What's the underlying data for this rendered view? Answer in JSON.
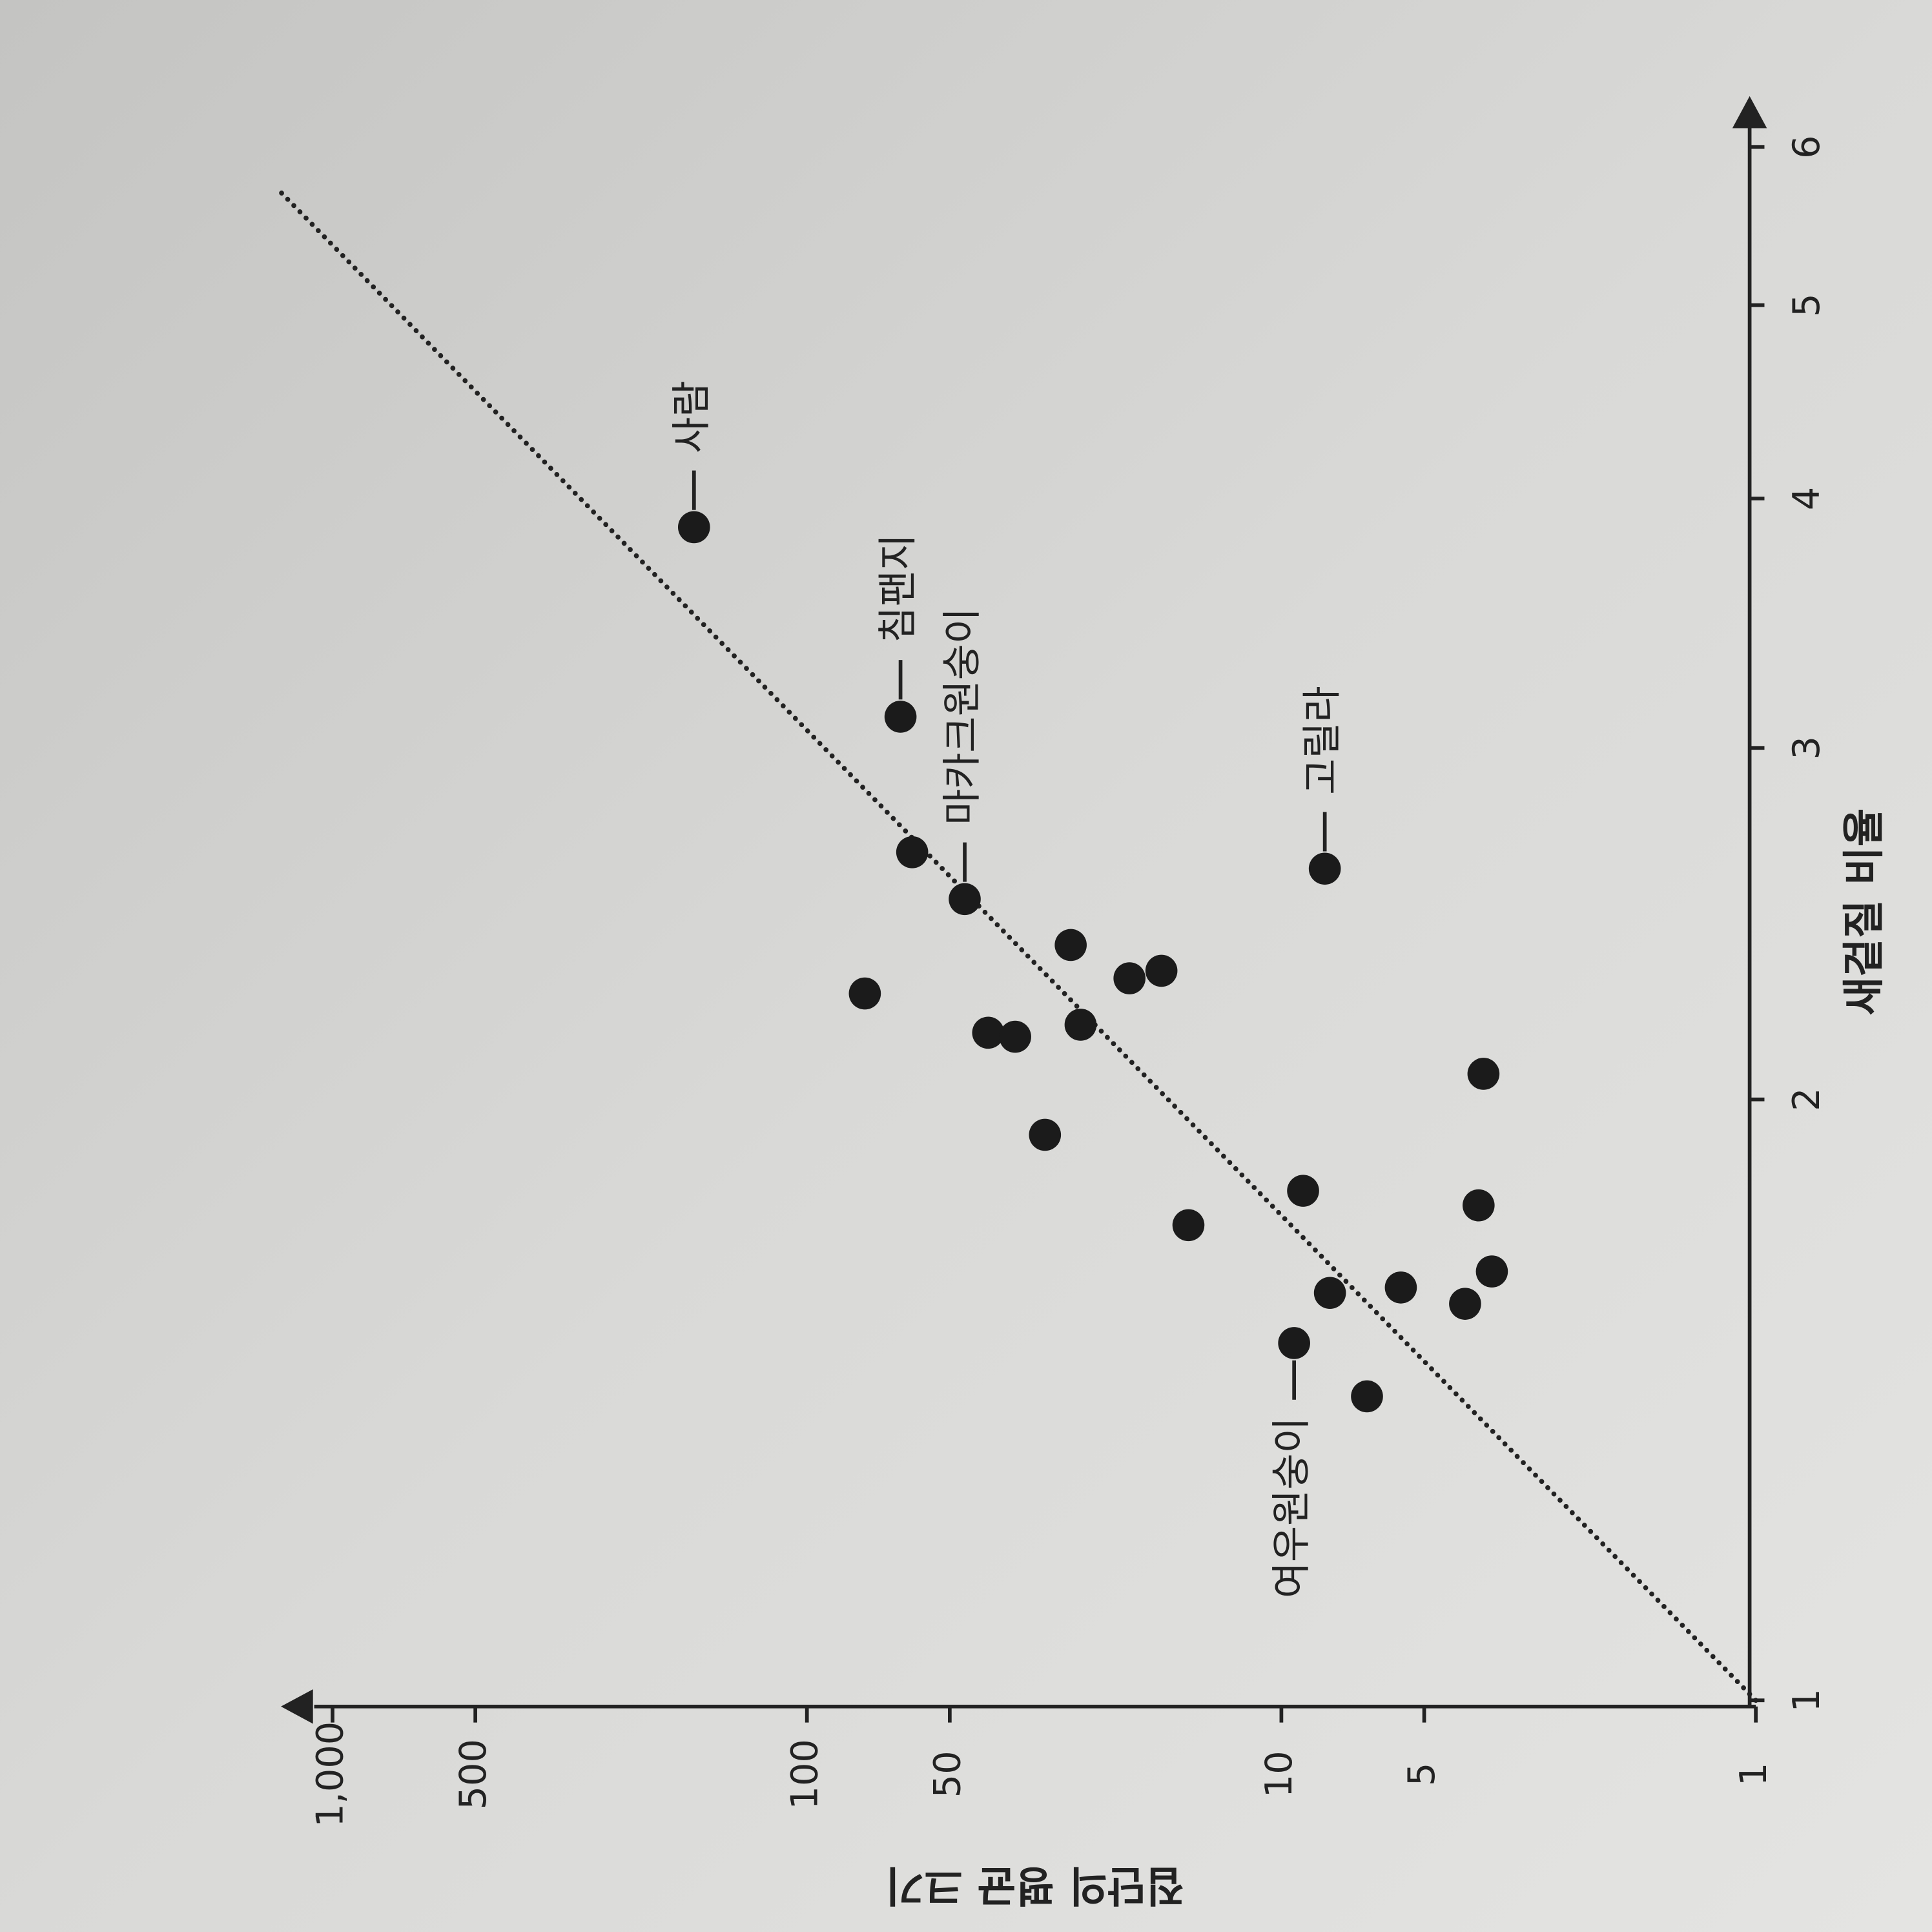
{
  "chart_data": {
    "type": "scatter",
    "x_label": "새겉질 비율",
    "y_label": "집단의 평균 크기",
    "xscale": "log",
    "yscale": "log",
    "xlim": [
      1,
      6.3
    ],
    "ylim": [
      1,
      1300
    ],
    "xticks": [
      1,
      2,
      3,
      4,
      5,
      6
    ],
    "yticks": [
      1,
      5,
      10,
      50,
      100,
      500,
      {
        "value": 1000,
        "label": "1,000"
      }
    ],
    "color": "#1b1b1b",
    "x": [
      3.87,
      3.11,
      2.52,
      2.66,
      2.61,
      2.26,
      2.39,
      2.3,
      2.32,
      2.16,
      2.15,
      2.18,
      1.92,
      2.06,
      1.8,
      1.73,
      1.77,
      1.64,
      1.6,
      1.61,
      1.58,
      1.51,
      1.42
    ],
    "y": [
      173,
      63.5,
      46.5,
      60,
      8.1,
      75.5,
      27.8,
      20.9,
      17.9,
      41.5,
      36.4,
      26.5,
      31.5,
      3.75,
      9.0,
      15.7,
      3.84,
      3.6,
      7.9,
      5.6,
      4.1,
      9.4,
      6.6
    ],
    "labels": [
      "사람",
      "침팬지",
      "마카크원숭이",
      null,
      "고릴라",
      null,
      null,
      null,
      null,
      null,
      null,
      null,
      null,
      null,
      null,
      null,
      null,
      null,
      null,
      null,
      null,
      "여우원숭이",
      null
    ],
    "trendline": {
      "x": [
        1,
        5.7
      ],
      "y": [
        1,
        1290
      ]
    }
  }
}
